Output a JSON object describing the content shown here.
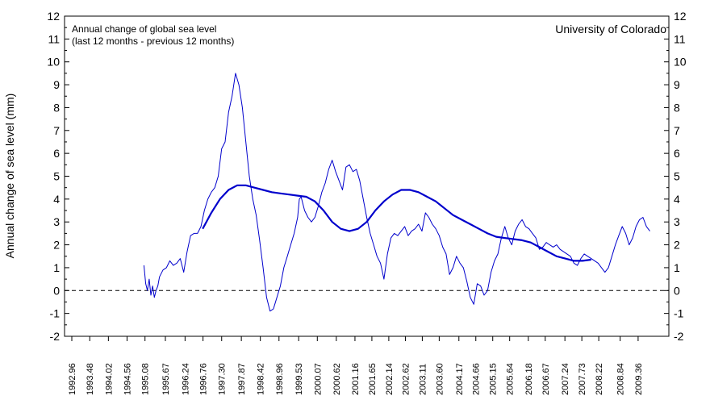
{
  "chart_data": {
    "type": "line",
    "title": "",
    "ylabel": "Annual change of sea level (mm)",
    "xlabel": "",
    "ylim": [
      -2,
      12
    ],
    "xlim": [
      1992.75,
      2010.25
    ],
    "y_ticks": [
      -2,
      -1,
      0,
      1,
      2,
      3,
      4,
      5,
      6,
      7,
      8,
      9,
      10,
      11,
      12
    ],
    "x_tick_labels": [
      "1992.96",
      "1993.48",
      "1994.02",
      "1994.56",
      "1995.08",
      "1995.67",
      "1996.24",
      "1996.76",
      "1997.30",
      "1997.87",
      "1998.42",
      "1998.96",
      "1999.53",
      "2000.07",
      "2000.62",
      "2001.16",
      "2001.65",
      "2002.14",
      "2002.62",
      "2003.11",
      "2003.60",
      "2004.17",
      "2004.66",
      "2005.15",
      "2005.64",
      "2006.18",
      "2006.67",
      "2007.24",
      "2007.73",
      "2008.22",
      "2008.84",
      "2009.36"
    ],
    "annotation_lines": [
      "Annual change of global sea level",
      "(last 12 months - previous 12 months)"
    ],
    "source": "University of Colorado",
    "reference_line": {
      "y": 0,
      "style": "dashed",
      "color": "#000000"
    },
    "grid": false,
    "colors": {
      "series": "#0000cc",
      "axis": "#000000"
    },
    "series": [
      {
        "style": "thin",
        "x": [
          1995.05,
          1995.1,
          1995.15,
          1995.2,
          1995.25,
          1995.3,
          1995.35,
          1995.4,
          1995.45,
          1995.5,
          1995.6,
          1995.7,
          1995.8,
          1995.9,
          1996.0,
          1996.1,
          1996.2,
          1996.3,
          1996.4,
          1996.5,
          1996.6,
          1996.7,
          1996.8,
          1996.9,
          1997.0,
          1997.1,
          1997.2,
          1997.3,
          1997.4,
          1997.5,
          1997.6,
          1997.7,
          1997.8,
          1997.9,
          1998.0,
          1998.1,
          1998.2,
          1998.3,
          1998.4,
          1998.5,
          1998.6,
          1998.7,
          1998.8,
          1998.9,
          1999.0,
          1999.1,
          1999.2,
          1999.3,
          1999.4,
          1999.5,
          1999.55,
          1999.6,
          1999.7,
          1999.8,
          1999.9,
          2000.0,
          2000.1,
          2000.2,
          2000.3,
          2000.4,
          2000.5,
          2000.6,
          2000.7,
          2000.8,
          2000.9,
          2001.0,
          2001.1,
          2001.2,
          2001.3,
          2001.4,
          2001.5,
          2001.6,
          2001.7,
          2001.8,
          2001.9,
          2002.0,
          2002.1,
          2002.2,
          2002.3,
          2002.4,
          2002.5,
          2002.6,
          2002.7,
          2002.8,
          2002.9,
          2003.0,
          2003.1,
          2003.2,
          2003.3,
          2003.4,
          2003.5,
          2003.6,
          2003.7,
          2003.8,
          2003.9,
          2004.0,
          2004.1,
          2004.2,
          2004.3,
          2004.4,
          2004.5,
          2004.6,
          2004.7,
          2004.8,
          2004.9,
          2005.0,
          2005.1,
          2005.2,
          2005.3,
          2005.4,
          2005.5,
          2005.6,
          2005.7,
          2005.8,
          2005.9,
          2006.0,
          2006.1,
          2006.2,
          2006.3,
          2006.4,
          2006.5,
          2006.6,
          2006.7,
          2006.8,
          2006.9,
          2007.0,
          2007.1,
          2007.2,
          2007.3,
          2007.4,
          2007.5,
          2007.6,
          2007.7,
          2007.8,
          2007.9,
          2008.0,
          2008.1,
          2008.2,
          2008.3,
          2008.4,
          2008.5,
          2008.6,
          2008.7,
          2008.8,
          2008.9,
          2009.0,
          2009.1,
          2009.2,
          2009.3,
          2009.4,
          2009.5,
          2009.6,
          2009.7
        ],
        "y": [
          1.1,
          0.3,
          0.0,
          0.5,
          -0.2,
          0.2,
          -0.3,
          0.0,
          0.2,
          0.6,
          0.9,
          1.0,
          1.3,
          1.1,
          1.2,
          1.4,
          0.8,
          1.7,
          2.4,
          2.5,
          2.5,
          2.8,
          3.5,
          4.0,
          4.3,
          4.5,
          5.0,
          6.2,
          6.5,
          7.8,
          8.5,
          9.5,
          9.0,
          8.0,
          6.5,
          5.0,
          4.0,
          3.3,
          2.2,
          1.0,
          -0.3,
          -0.9,
          -0.8,
          -0.3,
          0.2,
          1.0,
          1.5,
          2.0,
          2.5,
          3.2,
          4.0,
          4.1,
          3.5,
          3.2,
          3.0,
          3.2,
          3.7,
          4.3,
          4.7,
          5.3,
          5.7,
          5.2,
          4.8,
          4.4,
          5.4,
          5.5,
          5.2,
          5.3,
          4.8,
          4.0,
          3.2,
          2.5,
          2.0,
          1.5,
          1.2,
          0.5,
          1.6,
          2.3,
          2.5,
          2.4,
          2.6,
          2.8,
          2.4,
          2.6,
          2.7,
          2.9,
          2.6,
          3.4,
          3.2,
          2.9,
          2.7,
          2.4,
          1.9,
          1.6,
          0.7,
          1.0,
          1.5,
          1.2,
          1.0,
          0.4,
          -0.3,
          -0.6,
          0.3,
          0.2,
          -0.2,
          0.0,
          0.8,
          1.3,
          1.6,
          2.3,
          2.8,
          2.3,
          2.0,
          2.6,
          2.9,
          3.1,
          2.8,
          2.7,
          2.5,
          2.3,
          1.8,
          1.9,
          2.1,
          2.0,
          1.9,
          2.0,
          1.8,
          1.7,
          1.6,
          1.5,
          1.2,
          1.1,
          1.4,
          1.6,
          1.5,
          1.4,
          1.3,
          1.2,
          1.0,
          0.8,
          1.0,
          1.5,
          2.0,
          2.4,
          2.8,
          2.5,
          2.0,
          2.3,
          2.8,
          3.1,
          3.2,
          2.8,
          2.6
        ]
      },
      {
        "style": "thick",
        "x": [
          1996.75,
          1997.0,
          1997.25,
          1997.5,
          1997.75,
          1998.0,
          1998.25,
          1998.5,
          1998.75,
          1999.0,
          1999.25,
          1999.5,
          1999.75,
          2000.0,
          2000.25,
          2000.5,
          2000.75,
          2001.0,
          2001.25,
          2001.5,
          2001.75,
          2002.0,
          2002.25,
          2002.5,
          2002.75,
          2003.0,
          2003.25,
          2003.5,
          2003.75,
          2004.0,
          2004.25,
          2004.5,
          2004.75,
          2005.0,
          2005.25,
          2005.5,
          2005.75,
          2006.0,
          2006.25,
          2006.5,
          2006.75,
          2007.0,
          2007.25,
          2007.5,
          2007.75,
          2008.0
        ],
        "y": [
          2.7,
          3.4,
          4.0,
          4.4,
          4.6,
          4.6,
          4.5,
          4.4,
          4.3,
          4.25,
          4.2,
          4.15,
          4.1,
          3.9,
          3.5,
          3.0,
          2.7,
          2.6,
          2.7,
          3.0,
          3.5,
          3.9,
          4.2,
          4.4,
          4.4,
          4.3,
          4.1,
          3.9,
          3.6,
          3.3,
          3.1,
          2.9,
          2.7,
          2.5,
          2.35,
          2.3,
          2.25,
          2.2,
          2.1,
          1.9,
          1.7,
          1.5,
          1.4,
          1.3,
          1.3,
          1.35
        ]
      }
    ]
  }
}
